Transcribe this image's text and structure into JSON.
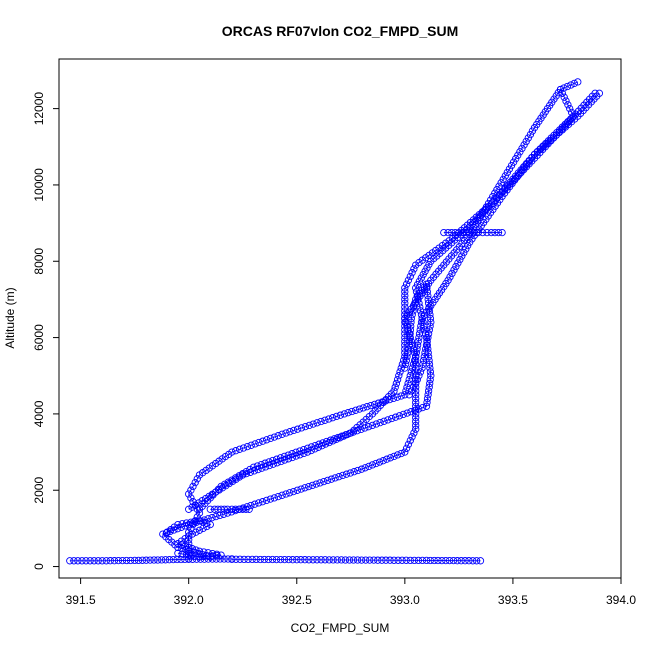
{
  "chart_data": {
    "type": "scatter",
    "title": "ORCAS RF07vlon CO2_FMPD_SUM",
    "xlabel": "CO2_FMPD_SUM",
    "ylabel": "Altitude (m)",
    "xlim": [
      391.4,
      394.0
    ],
    "ylim": [
      -300,
      13300
    ],
    "x_ticks": [
      391.5,
      392.0,
      392.5,
      393.0,
      393.5,
      394.0
    ],
    "x_tick_labels": [
      "391.5",
      "392.0",
      "392.5",
      "393.0",
      "393.5",
      "394.0"
    ],
    "y_ticks": [
      0,
      2000,
      4000,
      6000,
      8000,
      10000,
      12000
    ],
    "y_tick_labels": [
      "0",
      "2000",
      "4000",
      "6000",
      "8000",
      "10000",
      "12000"
    ],
    "grid": false,
    "marker": "open-circle",
    "color": "#0000ff",
    "series": [
      {
        "segments": [
          [
            [
              391.45,
              150
            ],
            [
              391.6,
              150
            ],
            [
              391.75,
              160
            ],
            [
              392.0,
              190
            ],
            [
              392.2,
              200
            ]
          ],
          [
            [
              392.2,
              190
            ],
            [
              392.5,
              180
            ],
            [
              392.8,
              170
            ],
            [
              393.1,
              160
            ],
            [
              393.35,
              150
            ]
          ],
          [
            [
              392.1,
              250
            ],
            [
              391.95,
              500
            ],
            [
              391.88,
              850
            ],
            [
              392.0,
              1100
            ],
            [
              392.18,
              1400
            ],
            [
              392.45,
              1900
            ],
            [
              392.8,
              2550
            ],
            [
              393.0,
              3000
            ],
            [
              393.05,
              3600
            ],
            [
              393.05,
              4500
            ],
            [
              393.05,
              5500
            ],
            [
              393.08,
              6500
            ],
            [
              393.2,
              7500
            ],
            [
              393.3,
              8500
            ],
            [
              393.45,
              9700
            ],
            [
              393.6,
              10800
            ],
            [
              393.78,
              11800
            ],
            [
              393.72,
              12500
            ],
            [
              393.8,
              12700
            ]
          ],
          [
            [
              393.9,
              12400
            ],
            [
              393.8,
              11800
            ],
            [
              393.6,
              10800
            ],
            [
              393.4,
              9500
            ],
            [
              393.22,
              8600
            ],
            [
              393.05,
              7900
            ],
            [
              393.0,
              7300
            ],
            [
              393.0,
              6500
            ],
            [
              393.05,
              5500
            ],
            [
              393.0,
              4500
            ],
            [
              392.72,
              4000
            ],
            [
              392.45,
              3500
            ],
            [
              392.2,
              3000
            ],
            [
              392.05,
              2400
            ],
            [
              392.0,
              1900
            ],
            [
              392.05,
              1400
            ],
            [
              392.0,
              900
            ],
            [
              392.0,
              500
            ],
            [
              392.0,
              200
            ]
          ],
          [
            [
              393.88,
              12400
            ],
            [
              393.65,
              11000
            ],
            [
              393.45,
              9800
            ],
            [
              393.3,
              8900
            ],
            [
              393.12,
              8000
            ],
            [
              393.05,
              7300
            ],
            [
              393.1,
              6000
            ],
            [
              393.12,
              5000
            ],
            [
              393.1,
              4200
            ],
            [
              392.85,
              3700
            ],
            [
              392.55,
              3100
            ],
            [
              392.3,
              2600
            ],
            [
              392.15,
              2100
            ],
            [
              392.05,
              1500
            ]
          ],
          [
            [
              392.0,
              1500
            ],
            [
              392.25,
              2400
            ],
            [
              392.55,
              3000
            ],
            [
              392.75,
              3500
            ],
            [
              392.85,
              4000
            ],
            [
              392.95,
              4600
            ],
            [
              393.0,
              5500
            ],
            [
              393.0,
              6500
            ],
            [
              393.12,
              7500
            ],
            [
              393.3,
              8700
            ],
            [
              393.6,
              11500
            ],
            [
              393.72,
              12500
            ]
          ],
          [
            [
              393.18,
              8750
            ],
            [
              393.2,
              8750
            ],
            [
              393.25,
              8750
            ],
            [
              393.3,
              8750
            ],
            [
              393.4,
              8750
            ],
            [
              393.45,
              8750
            ]
          ],
          [
            [
              392.1,
              1500
            ],
            [
              392.12,
              1500
            ],
            [
              392.15,
              1500
            ],
            [
              392.18,
              1500
            ],
            [
              392.2,
              1500
            ],
            [
              392.25,
              1500
            ],
            [
              392.28,
              1500
            ]
          ],
          [
            [
              393.0,
              5200
            ],
            [
              393.02,
              5800
            ],
            [
              393.03,
              6500
            ],
            [
              393.05,
              7000
            ],
            [
              393.1,
              7400
            ],
            [
              393.12,
              6400
            ],
            [
              393.1,
              5800
            ],
            [
              393.08,
              5200
            ],
            [
              393.05,
              4800
            ],
            [
              393.02,
              4500
            ]
          ],
          [
            [
              391.9,
              900
            ],
            [
              391.95,
              1100
            ],
            [
              392.05,
              1200
            ],
            [
              392.1,
              1100
            ],
            [
              392.0,
              800
            ],
            [
              391.95,
              600
            ],
            [
              392.05,
              400
            ],
            [
              392.15,
              300
            ],
            [
              392.05,
              250
            ],
            [
              391.95,
              350
            ]
          ]
        ]
      }
    ]
  }
}
